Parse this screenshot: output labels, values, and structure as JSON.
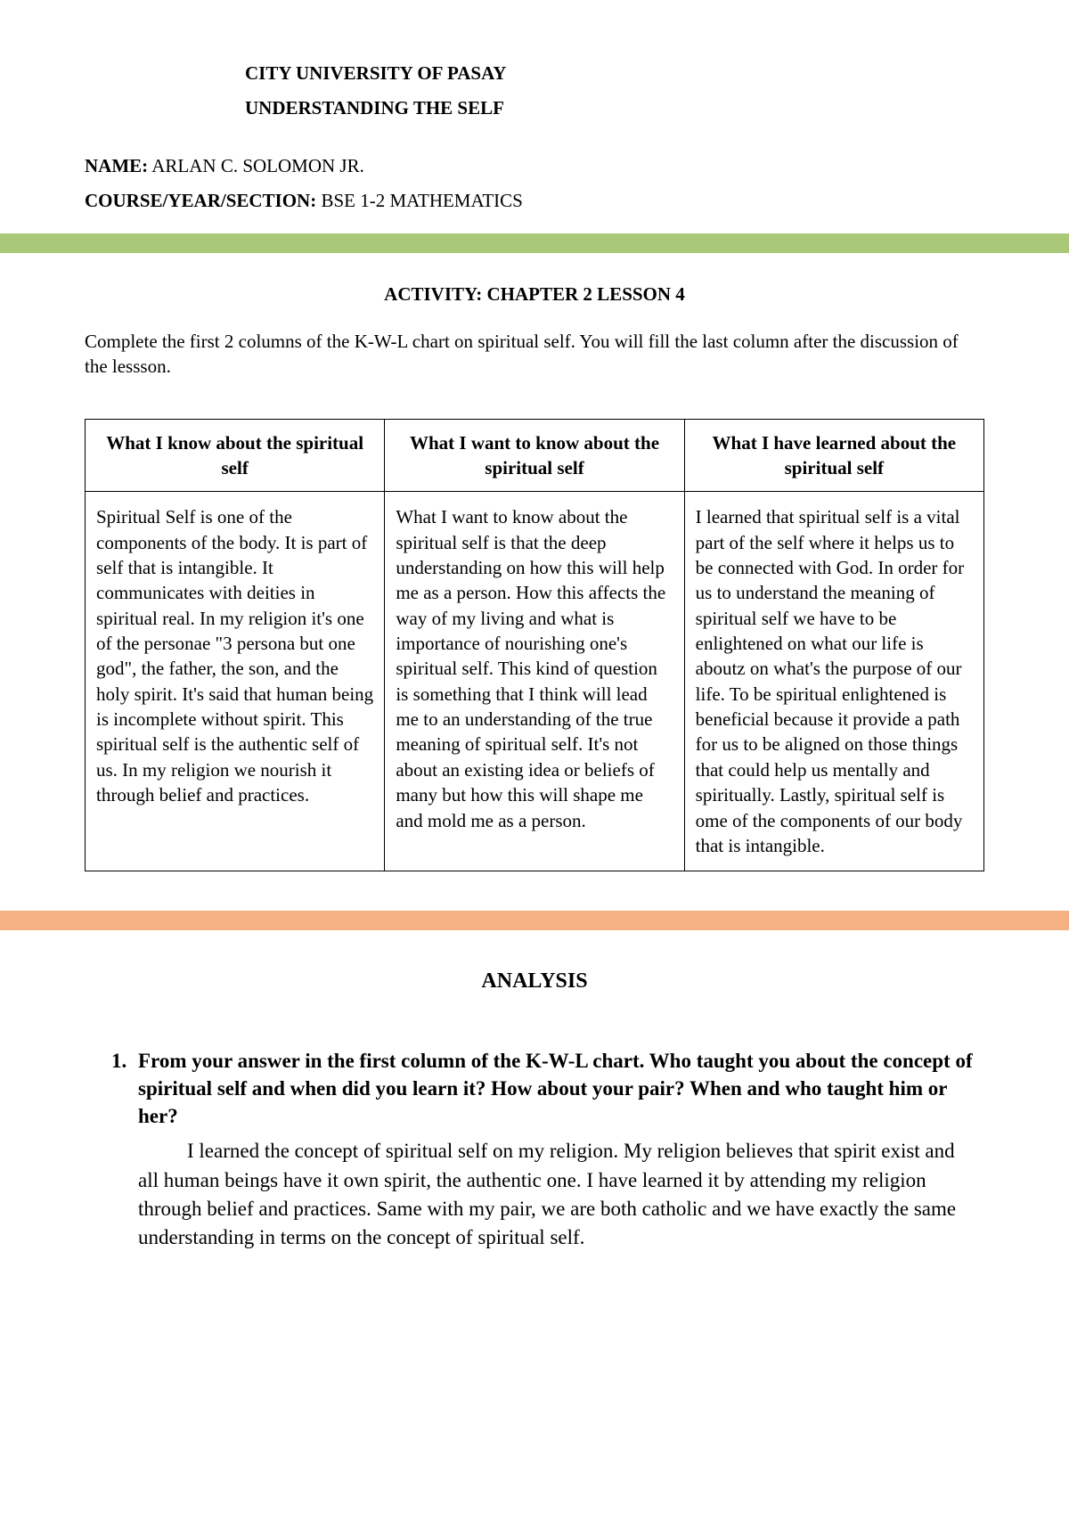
{
  "header": {
    "university": "CITY UNIVERSITY OF PASAY",
    "course_title": "UNDERSTANDING THE SELF"
  },
  "student": {
    "name_label": "NAME:",
    "name_value": " ARLAN C. SOLOMON JR.",
    "section_label": "COURSE/YEAR/SECTION:",
    "section_value": " BSE 1-2 MATHEMATICS"
  },
  "activity": {
    "title": "ACTIVITY: CHAPTER 2 LESSON 4",
    "instructions": "Complete the first 2 columns of the K-W-L chart on spiritual self. You will fill the last column after the discussion of the lessson."
  },
  "kwl": {
    "headers": [
      "What I know about the spiritual self",
      "What I want to know about the spiritual self",
      "What I have learned about the spiritual self"
    ],
    "cells": [
      "Spiritual Self is one of the components of the body. It is part of self that is intangible. It communicates with deities in spiritual real. In my religion it's one of the personae \"3 persona but one god\", the father, the son, and the holy spirit. It's said that human being is incomplete without spirit. This spiritual self is the authentic self of us. In my religion we nourish it through belief and practices.",
      "What I want to know about the spiritual self is that the deep understanding on how this will help me as a person. How this affects the way of my living and what is importance of nourishing one's spiritual self. This kind of question is something that I think will lead me to an understanding of the true meaning of spiritual self. It's not about an existing idea or beliefs of many but how this will shape me and mold me as a person.",
      "I learned that spiritual self is a vital part of the self where it helps us to be connected with God. In order for us to understand the meaning of spiritual self we have to be enlightened on what our life is aboutz on what's the purpose of our life. To be spiritual enlightened is beneficial because it provide a path for us to be aligned on those things that could help us mentally and spiritually. Lastly, spiritual self is ome of the components of our body that is intangible."
    ]
  },
  "analysis": {
    "title": "ANALYSIS",
    "q1_num": "1.",
    "q1_text": "From your answer in the first column of the K-W-L chart. Who taught you about the concept of spiritual self and when did you learn it? How about your pair? When and who taught him or her?",
    "q1_answer": "I learned the concept of spiritual self on my religion. My religion believes that spirit exist and all human beings have it own spirit, the authentic one. I have learned it by attending my religion through belief and practices. Same with my pair, we are both catholic and we have exactly the same understanding in terms on the concept of spiritual self."
  },
  "colors": {
    "green_bar": "#a9c978",
    "orange_bar": "#f4b183",
    "text": "#000000",
    "background": "#ffffff"
  }
}
